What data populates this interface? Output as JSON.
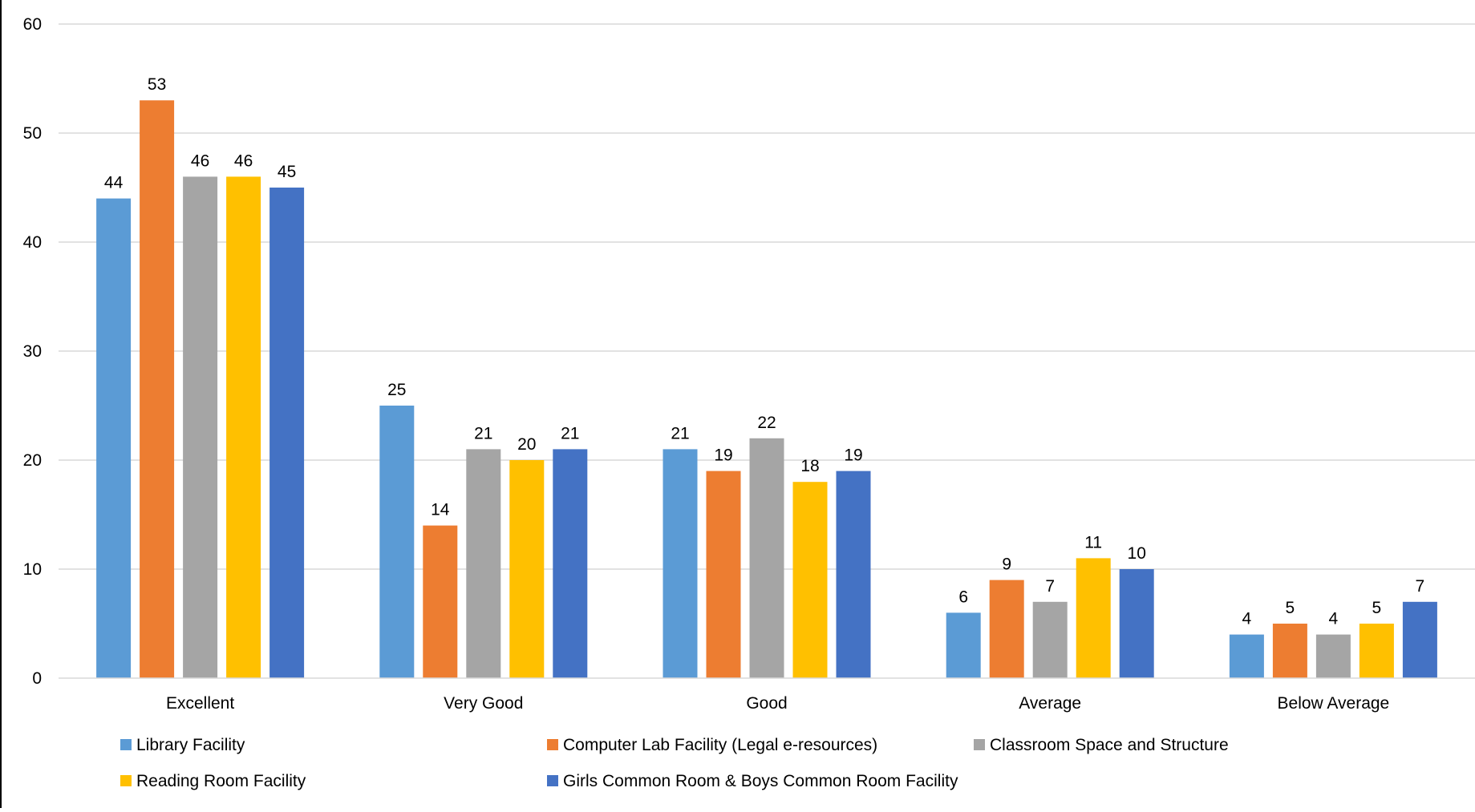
{
  "chart_data": {
    "type": "bar",
    "title": "",
    "xlabel": "",
    "ylabel": "",
    "categories": [
      "Excellent",
      "Very Good",
      "Good",
      "Average",
      "Below Average"
    ],
    "yticks": [
      "0",
      "10",
      "20",
      "30",
      "40",
      "50",
      "60"
    ],
    "ylim": [
      0,
      60
    ],
    "grid": true,
    "legend_position": "bottom",
    "series": [
      {
        "name": "Library Facility",
        "color": "#5B9BD5",
        "values": [
          44,
          25,
          21,
          6,
          4
        ]
      },
      {
        "name": "Computer Lab Facility (Legal e-resources)",
        "color": "#ED7D31",
        "values": [
          53,
          14,
          19,
          9,
          5
        ]
      },
      {
        "name": "Classroom Space and Structure",
        "color": "#A5A5A5",
        "values": [
          46,
          21,
          22,
          7,
          4
        ]
      },
      {
        "name": "Reading Room Facility",
        "color": "#FFC000",
        "values": [
          46,
          20,
          18,
          11,
          5
        ]
      },
      {
        "name": "Girls Common Room & Boys Common Room Facility",
        "color": "#4472C4",
        "values": [
          45,
          21,
          19,
          10,
          7
        ]
      }
    ]
  }
}
